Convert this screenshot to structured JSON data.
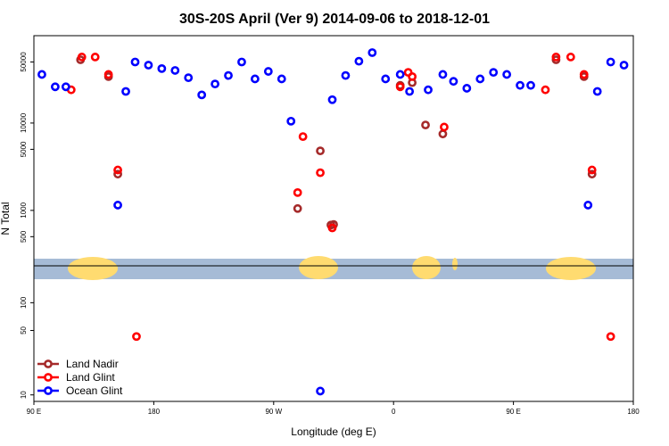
{
  "chart_data": {
    "type": "scatter",
    "title": "30S-20S April (Ver 9)   2014-09-06 to 2018-12-01",
    "xlabel": "Longitude (deg E)",
    "ylabel": "N Total",
    "xlim": [
      90,
      540
    ],
    "ylog": true,
    "ylim": [
      8.5,
      100000
    ],
    "x_ticks": [
      {
        "value": 90,
        "label": "90 E"
      },
      {
        "value": 180,
        "label": "180"
      },
      {
        "value": 270,
        "label": "90 W"
      },
      {
        "value": 360,
        "label": "0"
      },
      {
        "value": 450,
        "label": "90 E"
      },
      {
        "value": 540,
        "label": "180"
      }
    ],
    "y_ticks_upper": [
      {
        "value": 500,
        "label": "500"
      },
      {
        "value": 1000,
        "label": "1000"
      },
      {
        "value": 5000,
        "label": "5000"
      },
      {
        "value": 10000,
        "label": "10000"
      },
      {
        "value": 50000,
        "label": "50000"
      }
    ],
    "y_ticks_lower": [
      {
        "value": 10,
        "label": "10"
      },
      {
        "value": 50,
        "label": "50"
      },
      {
        "value": 100,
        "label": "100"
      }
    ],
    "legend_position": "bottom-left",
    "series": [
      {
        "name": "Land Nadir",
        "color": "#a52a2a",
        "points": [
          [
            125,
            53000
          ],
          [
            146,
            34000
          ],
          [
            153,
            2600
          ],
          [
            288,
            1050
          ],
          [
            305,
            4800
          ],
          [
            313,
            680
          ],
          [
            315,
            690
          ],
          [
            365,
            27000
          ],
          [
            374,
            29000
          ],
          [
            384,
            9500
          ],
          [
            397,
            7500
          ],
          [
            482,
            53000
          ],
          [
            503,
            34000
          ],
          [
            509,
            2600
          ]
        ]
      },
      {
        "name": "Land Glint",
        "color": "#ff0000",
        "points": [
          [
            118,
            24000
          ],
          [
            126,
            57000
          ],
          [
            136,
            57000
          ],
          [
            146,
            36000
          ],
          [
            153,
            2900
          ],
          [
            167,
            43
          ],
          [
            288,
            1600
          ],
          [
            292,
            7000
          ],
          [
            305,
            2700
          ],
          [
            314,
            630
          ],
          [
            365,
            26000
          ],
          [
            371,
            38000
          ],
          [
            374,
            34000
          ],
          [
            398,
            9000
          ],
          [
            474,
            24000
          ],
          [
            482,
            57000
          ],
          [
            493,
            57000
          ],
          [
            503,
            36000
          ],
          [
            509,
            2900
          ],
          [
            523,
            43
          ]
        ]
      },
      {
        "name": "Ocean Glint",
        "color": "#0000ff",
        "points": [
          [
            96,
            36000
          ],
          [
            106,
            26000
          ],
          [
            114,
            26000
          ],
          [
            153,
            1150
          ],
          [
            159,
            23000
          ],
          [
            166,
            50000
          ],
          [
            176,
            46000
          ],
          [
            186,
            42000
          ],
          [
            196,
            40000
          ],
          [
            206,
            33000
          ],
          [
            216,
            21000
          ],
          [
            226,
            28000
          ],
          [
            236,
            35000
          ],
          [
            246,
            50000
          ],
          [
            256,
            32000
          ],
          [
            266,
            39000
          ],
          [
            276,
            32000
          ],
          [
            283,
            10500
          ],
          [
            305,
            11
          ],
          [
            314,
            18500
          ],
          [
            324,
            35000
          ],
          [
            334,
            51000
          ],
          [
            344,
            64000
          ],
          [
            354,
            32000
          ],
          [
            365,
            36000
          ],
          [
            372,
            23000
          ],
          [
            386,
            24000
          ],
          [
            397,
            36000
          ],
          [
            405,
            30000
          ],
          [
            415,
            25000
          ],
          [
            425,
            32000
          ],
          [
            435,
            38000
          ],
          [
            445,
            36000
          ],
          [
            455,
            27000
          ],
          [
            463,
            27000
          ],
          [
            506,
            1150
          ],
          [
            513,
            23000
          ],
          [
            523,
            50000
          ],
          [
            533,
            46000
          ]
        ]
      }
    ]
  }
}
